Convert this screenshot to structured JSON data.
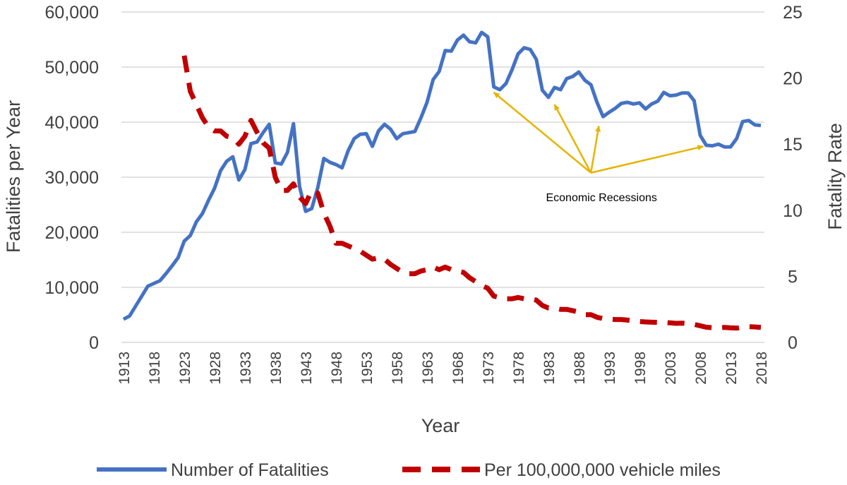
{
  "chart_data": {
    "type": "line",
    "title": "",
    "xlabel": "Year",
    "ylabel": "Fatalities per Year",
    "y2label": "Fatality Rate",
    "xlim": [
      1913,
      2018
    ],
    "ylim": [
      0,
      60000
    ],
    "y2lim": [
      0,
      25
    ],
    "x_ticks": [
      "1913",
      "1918",
      "1923",
      "1928",
      "1933",
      "1938",
      "1943",
      "1948",
      "1953",
      "1958",
      "1963",
      "1968",
      "1973",
      "1978",
      "1983",
      "1988",
      "1993",
      "1998",
      "2003",
      "2008",
      "2013",
      "2018"
    ],
    "y_ticks": [
      {
        "value": 0,
        "label": "0"
      },
      {
        "value": 10000,
        "label": "10,000"
      },
      {
        "value": 20000,
        "label": "20,000"
      },
      {
        "value": 30000,
        "label": "30,000"
      },
      {
        "value": 40000,
        "label": "40,000"
      },
      {
        "value": 50000,
        "label": "50,000"
      },
      {
        "value": 60000,
        "label": "60,000"
      }
    ],
    "y2_ticks": [
      {
        "value": 0,
        "label": "0"
      },
      {
        "value": 5,
        "label": "5"
      },
      {
        "value": 10,
        "label": "10"
      },
      {
        "value": 15,
        "label": "15"
      },
      {
        "value": 20,
        "label": "20"
      },
      {
        "value": 25,
        "label": "25"
      }
    ],
    "grid": true,
    "legend_position": "bottom",
    "colors": {
      "fatalities": "#4472C4",
      "rate": "#C00000",
      "annotation": "#E6B400",
      "grid": "#D9D9D9",
      "text": "#404040"
    },
    "series": [
      {
        "name": "Number of Fatalities",
        "axis": "left",
        "style": "solid",
        "x": [
          1913,
          1914,
          1915,
          1916,
          1917,
          1918,
          1919,
          1920,
          1921,
          1922,
          1923,
          1924,
          1925,
          1926,
          1927,
          1928,
          1929,
          1930,
          1931,
          1932,
          1933,
          1934,
          1935,
          1936,
          1937,
          1938,
          1939,
          1940,
          1941,
          1942,
          1943,
          1944,
          1945,
          1946,
          1947,
          1948,
          1949,
          1950,
          1951,
          1952,
          1953,
          1954,
          1955,
          1956,
          1957,
          1958,
          1959,
          1960,
          1961,
          1962,
          1963,
          1964,
          1965,
          1966,
          1967,
          1968,
          1969,
          1970,
          1971,
          1972,
          1973,
          1974,
          1975,
          1976,
          1977,
          1978,
          1979,
          1980,
          1981,
          1982,
          1983,
          1984,
          1985,
          1986,
          1987,
          1988,
          1989,
          1990,
          1991,
          1992,
          1993,
          1994,
          1995,
          1996,
          1997,
          1998,
          1999,
          2000,
          2001,
          2002,
          2003,
          2004,
          2005,
          2006,
          2007,
          2008,
          2009,
          2010,
          2011,
          2012,
          2013,
          2014,
          2015,
          2016,
          2017,
          2018
        ],
        "values": [
          4200,
          4800,
          6600,
          8400,
          10200,
          10700,
          11200,
          12500,
          13900,
          15400,
          18400,
          19400,
          21900,
          23400,
          25800,
          28000,
          31200,
          32900,
          33700,
          29500,
          31400,
          36100,
          36400,
          38100,
          39600,
          32600,
          32400,
          34500,
          39700,
          28300,
          23800,
          24300,
          28100,
          33400,
          32700,
          32300,
          31700,
          34800,
          37000,
          37800,
          37900,
          35600,
          38400,
          39600,
          38700,
          37000,
          37900,
          38100,
          38300,
          40800,
          43600,
          47700,
          49200,
          53000,
          52900,
          54900,
          55800,
          54600,
          54400,
          56300,
          55500,
          46400,
          45900,
          47000,
          49500,
          52400,
          53500,
          53200,
          51400,
          45800,
          44500,
          46300,
          45900,
          47900,
          48300,
          49100,
          47600,
          46800,
          43600,
          41000,
          41800,
          42500,
          43400,
          43600,
          43300,
          43500,
          42400,
          43300,
          43800,
          45400,
          44800,
          44900,
          45300,
          45300,
          43900,
          37600,
          35800,
          35700,
          36000,
          35500,
          35500,
          37000,
          40100,
          40300,
          39500,
          39400
        ]
      },
      {
        "name": "Per 100,000,000 vehicle miles",
        "axis": "right",
        "style": "dashed",
        "x": [
          1923,
          1924,
          1925,
          1926,
          1927,
          1928,
          1929,
          1930,
          1931,
          1932,
          1933,
          1934,
          1935,
          1936,
          1937,
          1938,
          1939,
          1940,
          1941,
          1942,
          1943,
          1944,
          1945,
          1946,
          1947,
          1948,
          1949,
          1950,
          1951,
          1952,
          1953,
          1954,
          1955,
          1956,
          1957,
          1958,
          1959,
          1960,
          1961,
          1962,
          1963,
          1964,
          1965,
          1966,
          1967,
          1968,
          1969,
          1970,
          1971,
          1972,
          1973,
          1974,
          1975,
          1976,
          1977,
          1978,
          1979,
          1980,
          1981,
          1982,
          1983,
          1984,
          1985,
          1986,
          1987,
          1988,
          1989,
          1990,
          1991,
          1992,
          1993,
          1994,
          1995,
          1996,
          1997,
          1998,
          1999,
          2000,
          2001,
          2002,
          2003,
          2004,
          2005,
          2006,
          2007,
          2008,
          2009,
          2010,
          2011,
          2012,
          2013,
          2014,
          2015,
          2016,
          2017,
          2018
        ],
        "values": [
          21.7,
          19.0,
          18.0,
          17.0,
          16.3,
          16.0,
          16.0,
          15.6,
          15.5,
          15.0,
          15.6,
          16.8,
          15.9,
          15.1,
          14.7,
          12.5,
          11.5,
          11.5,
          12.0,
          11.0,
          10.5,
          11.5,
          11.3,
          9.8,
          8.8,
          7.5,
          7.5,
          7.3,
          7.1,
          6.9,
          6.6,
          6.3,
          6.4,
          6.3,
          5.9,
          5.6,
          5.3,
          5.2,
          5.2,
          5.4,
          5.5,
          5.7,
          5.5,
          5.7,
          5.5,
          5.4,
          5.3,
          4.9,
          4.6,
          4.3,
          4.1,
          3.5,
          3.4,
          3.3,
          3.3,
          3.4,
          3.3,
          3.3,
          3.2,
          2.8,
          2.6,
          2.6,
          2.5,
          2.5,
          2.4,
          2.3,
          2.1,
          2.1,
          1.9,
          1.8,
          1.75,
          1.73,
          1.73,
          1.69,
          1.64,
          1.58,
          1.55,
          1.53,
          1.51,
          1.51,
          1.48,
          1.44,
          1.46,
          1.42,
          1.36,
          1.26,
          1.15,
          1.11,
          1.1,
          1.14,
          1.1,
          1.08,
          1.15,
          1.19,
          1.17,
          1.13
        ]
      }
    ],
    "annotations": [
      {
        "text": "Economic Recessions",
        "arrow_origin": {
          "x": 1990,
          "y": 30800
        },
        "targets": [
          {
            "x": 1974,
            "y": 45400
          },
          {
            "x": 1984,
            "y": 43200
          },
          {
            "x": 1991.3,
            "y": 39300
          },
          {
            "x": 2008.5,
            "y": 35600
          }
        ]
      }
    ],
    "legend": [
      {
        "label": "Number of Fatalities",
        "series": 0
      },
      {
        "label": "Per 100,000,000 vehicle miles",
        "series": 1
      }
    ]
  }
}
